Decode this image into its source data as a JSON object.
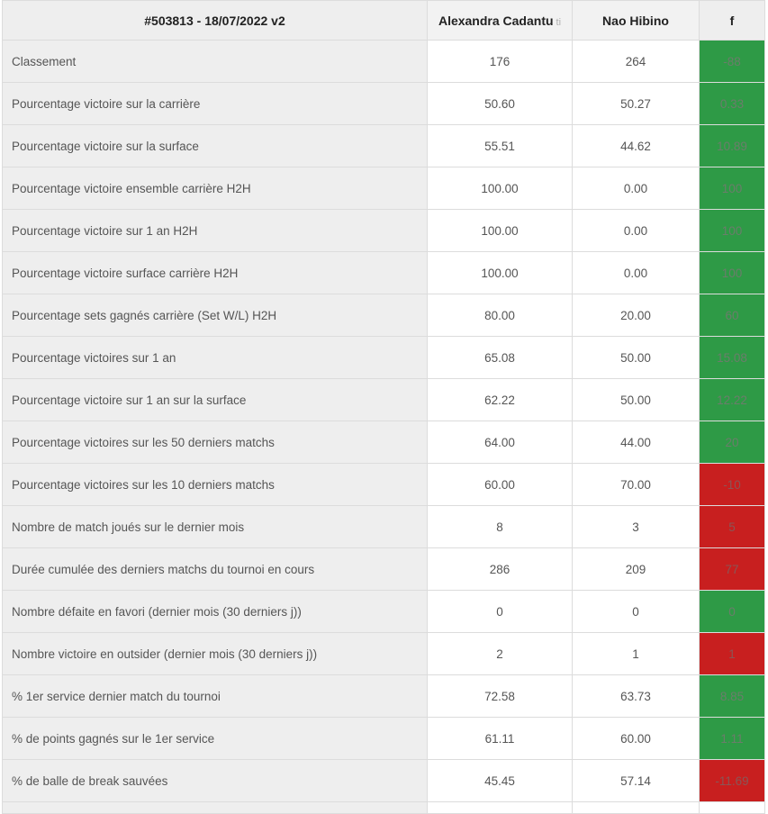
{
  "header": {
    "match": "#503813 - 18/07/2022 v2",
    "player1": "Alexandra Cadantu",
    "player1_tag": "ti",
    "player2": "Nao Hibino",
    "diff": "f"
  },
  "colors": {
    "good": "#2e9a46",
    "bad": "#c81f1f"
  },
  "rows": [
    {
      "label": "Classement",
      "p1": "176",
      "p2": "264",
      "diff": "-88",
      "status": "good"
    },
    {
      "label": "Pourcentage victoire sur la carrière",
      "p1": "50.60",
      "p2": "50.27",
      "diff": "0.33",
      "status": "good"
    },
    {
      "label": "Pourcentage victoire sur la surface",
      "p1": "55.51",
      "p2": "44.62",
      "diff": "10.89",
      "status": "good"
    },
    {
      "label": "Pourcentage victoire ensemble carrière H2H",
      "p1": "100.00",
      "p2": "0.00",
      "diff": "100",
      "status": "good"
    },
    {
      "label": "Pourcentage victoire sur 1 an H2H",
      "p1": "100.00",
      "p2": "0.00",
      "diff": "100",
      "status": "good"
    },
    {
      "label": "Pourcentage victoire surface carrière H2H",
      "p1": "100.00",
      "p2": "0.00",
      "diff": "100",
      "status": "good"
    },
    {
      "label": "Pourcentage sets gagnés carrière (Set W/L) H2H",
      "p1": "80.00",
      "p2": "20.00",
      "diff": "60",
      "status": "good"
    },
    {
      "label": "Pourcentage victoires sur 1 an",
      "p1": "65.08",
      "p2": "50.00",
      "diff": "15.08",
      "status": "good"
    },
    {
      "label": "Pourcentage victoire sur 1 an sur la surface",
      "p1": "62.22",
      "p2": "50.00",
      "diff": "12.22",
      "status": "good"
    },
    {
      "label": "Pourcentage victoires sur les 50 derniers matchs",
      "p1": "64.00",
      "p2": "44.00",
      "diff": "20",
      "status": "good"
    },
    {
      "label": "Pourcentage victoires sur les 10 derniers matchs",
      "p1": "60.00",
      "p2": "70.00",
      "diff": "-10",
      "status": "bad"
    },
    {
      "label": "Nombre de match joués sur le dernier mois",
      "p1": "8",
      "p2": "3",
      "diff": "5",
      "status": "bad"
    },
    {
      "label": "Durée cumulée des derniers matchs du tournoi en cours",
      "p1": "286",
      "p2": "209",
      "diff": "77",
      "status": "bad"
    },
    {
      "label": "Nombre défaite en favori (dernier mois (30 derniers j))",
      "p1": "0",
      "p2": "0",
      "diff": "0",
      "status": "good"
    },
    {
      "label": "Nombre victoire en outsider (dernier mois (30 derniers j))",
      "p1": "2",
      "p2": "1",
      "diff": "1",
      "status": "bad"
    },
    {
      "label": "% 1er service dernier match du tournoi",
      "p1": "72.58",
      "p2": "63.73",
      "diff": "8.85",
      "status": "good"
    },
    {
      "label": "% de points gagnés sur le 1er service",
      "p1": "61.11",
      "p2": "60.00",
      "diff": "1.11",
      "status": "good"
    },
    {
      "label": "% de balle de break sauvées",
      "p1": "45.45",
      "p2": "57.14",
      "diff": "-11.69",
      "status": "bad"
    }
  ]
}
